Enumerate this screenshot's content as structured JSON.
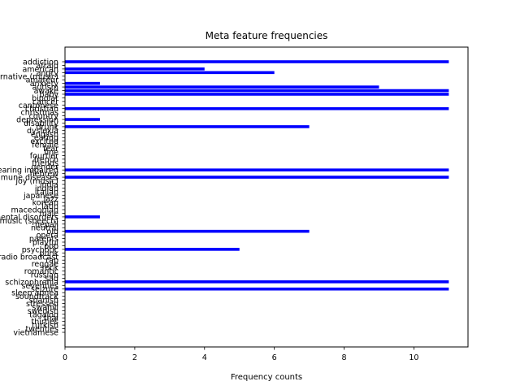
{
  "chart_data": {
    "type": "bar",
    "orientation": "horizontal",
    "title": "Meta feature frequencies",
    "xlabel": "Frequency counts",
    "ylabel": "",
    "xlim": [
      0,
      11.55
    ],
    "xticks": [
      0,
      2,
      4,
      6,
      8,
      10
    ],
    "grid": false,
    "bar_color": "#0000ff",
    "categories": [
      "addiction",
      "afraid",
      "american",
      "angry",
      "alternative (music)",
      "amateur",
      "anxiety",
      "autism",
      "awake",
      "baby",
      "bipolar",
      "cancer",
      "cantonese",
      "christian",
      "christmas",
      "country",
      "depression",
      "disability",
      "drunk",
      "dyslexia",
      "english",
      "eating",
      "excited",
      "female",
      "fear",
      "fine",
      "fourtier",
      "french",
      "friends",
      "gender",
      "hearing impaired",
      "hebrew",
      "immune diseases",
      "joy (music)",
      "india",
      "indian",
      "italian",
      "japanese",
      "jazz",
      "korean",
      "latin",
      "macedonian",
      "male",
      "mental disorders",
      "music (speech)",
      "nepali",
      "neutral",
      "old",
      "opera",
      "parents",
      "playful",
      "pop",
      "psychotic",
      "punk",
      "radio broadcast",
      "rap",
      "reggae",
      "rock",
      "romantic",
      "russian",
      "sad",
      "schizophrenia",
      "seventies",
      "seizure",
      "sleep apnea",
      "soundtrack",
      "spanish",
      "stressed",
      "swahili",
      "swedish",
      "tagalog",
      "thai",
      "thirties",
      "turkish",
      "twenties",
      "vietnamese"
    ],
    "values": [
      11,
      0,
      4,
      6,
      0,
      0,
      1,
      9,
      11,
      11,
      0,
      0,
      0,
      11,
      0,
      0,
      1,
      0,
      7,
      0,
      0,
      0,
      0,
      0,
      0,
      0,
      0,
      0,
      0,
      0,
      11,
      0,
      11,
      0,
      0,
      0,
      0,
      0,
      0,
      0,
      0,
      0,
      0,
      1,
      0,
      0,
      0,
      7,
      0,
      0,
      0,
      0,
      5,
      0,
      0,
      0,
      0,
      0,
      0,
      0,
      0,
      11,
      0,
      11,
      0,
      0,
      0,
      0,
      0,
      0,
      0,
      0,
      0,
      0,
      0,
      0
    ]
  }
}
